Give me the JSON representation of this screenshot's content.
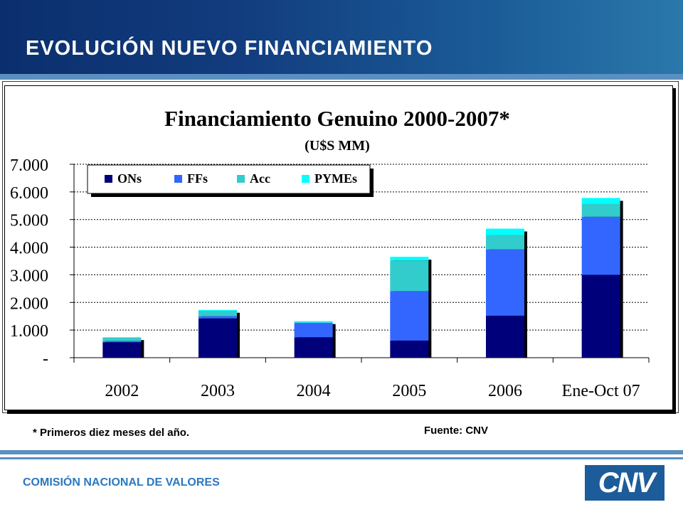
{
  "header": {
    "title": "EVOLUCIÓN NUEVO FINANCIAMIENTO"
  },
  "colors": {
    "ONs": "#00007a",
    "FFs": "#3366ff",
    "Acc": "#33cccc",
    "PYMEs": "#00ffff",
    "header_band": "#123c7e",
    "footer_text": "#2a78c0"
  },
  "chart_data": {
    "type": "bar",
    "stacked": true,
    "title": "Financiamiento Genuino 2000-2007*",
    "subtitle": "(U$S MM)",
    "categories": [
      "2002",
      "2003",
      "2004",
      "2005",
      "2006",
      "Ene-Oct 07"
    ],
    "series": [
      {
        "name": "ONs",
        "values": [
          560,
          1420,
          740,
          620,
          1520,
          3000
        ]
      },
      {
        "name": "FFs",
        "values": [
          40,
          80,
          520,
          1790,
          2400,
          2100
        ]
      },
      {
        "name": "Acc",
        "values": [
          120,
          200,
          20,
          1110,
          520,
          460
        ]
      },
      {
        "name": "PYMEs",
        "values": [
          20,
          30,
          40,
          130,
          230,
          220
        ]
      }
    ],
    "ylim": [
      0,
      7000
    ],
    "yticks": [
      0,
      1000,
      2000,
      3000,
      4000,
      5000,
      6000,
      7000
    ],
    "ytick_labels": [
      "-",
      "1.000",
      "2.000",
      "3.000",
      "4.000",
      "5.000",
      "6.000",
      "7.000"
    ],
    "grid": true,
    "legend_position": "top-left"
  },
  "notes": {
    "footnote": "* Primeros diez meses del año.",
    "source": "Fuente: CNV"
  },
  "footer": {
    "organization": "COMISIÓN NACIONAL DE VALORES",
    "logo_text": "CNV"
  }
}
